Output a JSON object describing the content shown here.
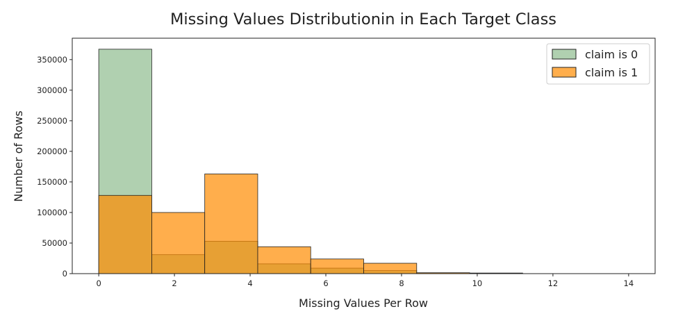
{
  "chart_data": {
    "type": "bar",
    "title": "Missing Values Distributionin in Each Target Class",
    "xlabel": "Missing Values Per Row",
    "ylabel": "Number of Rows",
    "xlim": [
      -0.7,
      14.7
    ],
    "ylim": [
      0,
      385000
    ],
    "x_ticks": [
      0,
      2,
      4,
      6,
      8,
      10,
      12,
      14
    ],
    "y_ticks": [
      0,
      50000,
      100000,
      150000,
      200000,
      250000,
      300000,
      350000
    ],
    "bin_edges": [
      0,
      1.4,
      2.8,
      4.2,
      5.6,
      7.0,
      8.4,
      9.8,
      11.2,
      12.6,
      14.0
    ],
    "series": [
      {
        "name": "claim is 0",
        "color": "#8fbc8f",
        "edge_color": "#222222",
        "alpha": 0.7,
        "values": [
          367000,
          31000,
          53000,
          16000,
          9000,
          5000,
          1200,
          400,
          0,
          0
        ]
      },
      {
        "name": "claim is 1",
        "color": "#ff8c00",
        "edge_color": "#222222",
        "alpha": 0.7,
        "values": [
          128000,
          100000,
          163000,
          44000,
          24000,
          17000,
          1500,
          1000,
          0,
          0
        ]
      }
    ],
    "legend_position": "top-right",
    "grid": false
  }
}
